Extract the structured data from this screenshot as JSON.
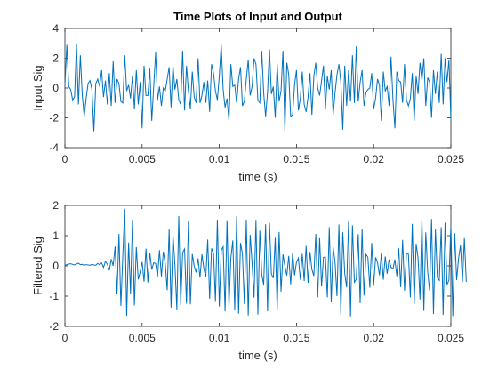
{
  "figure": {
    "title": "Time Plots of Input and Output"
  },
  "chart_data": [
    {
      "type": "line",
      "title": "Time Plots of Input and Output",
      "xlabel": "time (s)",
      "ylabel": "Input Sig",
      "xlim": [
        0,
        0.025
      ],
      "ylim": [
        -4,
        4
      ],
      "xticks": [
        0,
        0.005,
        0.01,
        0.015,
        0.02,
        0.025
      ],
      "xtick_labels": [
        "0",
        "0.005",
        "0.01",
        "0.015",
        "0.02",
        "0.025"
      ],
      "yticks": [
        -4,
        -2,
        0,
        2,
        4
      ],
      "ytick_labels": [
        "-4",
        "-2",
        "0",
        "2",
        "4"
      ],
      "grid": false,
      "line_color": "#0072BD",
      "series": [
        {
          "x_start": 0,
          "x_step": 0.000125,
          "values": [
            0.2,
            2.9,
            0.1,
            -0.1,
            -0.8,
            -0.6,
            2.95,
            -1.1,
            2.2,
            -0.5,
            -1.9,
            -0.7,
            0.3,
            0.5,
            -0.1,
            -2.9,
            0.3,
            0.6,
            0.1,
            1.2,
            -0.6,
            0.5,
            -1.1,
            1.0,
            -1.2,
            1.8,
            -1.0,
            0.6,
            0.3,
            -0.9,
            -1.0,
            2.2,
            -0.2,
            0.2,
            -0.7,
            0.8,
            -1.4,
            1.2,
            -1.1,
            0.4,
            -2.7,
            1.5,
            -0.5,
            -0.5,
            1.3,
            -2.2,
            0.1,
            2.4,
            -0.8,
            0.1,
            -1.2,
            0.0,
            -0.2,
            0.6,
            1.4,
            -1.3,
            1.5,
            -0.1,
            0.6,
            -0.8,
            -1.1,
            2.5,
            -1.5,
            1.5,
            -0.2,
            -1.4,
            1.1,
            -0.6,
            -1.0,
            2.0,
            -1.0,
            -0.5,
            0.4,
            -1.0,
            0.5,
            -1.6,
            1.6,
            1.0,
            -0.2,
            -0.8,
            0.8,
            2.9,
            -0.1,
            -1.3,
            -0.7,
            -2.2,
            1.6,
            0.1,
            0.2,
            -1.0,
            0.6,
            1.4,
            -1.2,
            -0.9,
            0.6,
            1.9,
            -0.5,
            0.1,
            2.0,
            1.6,
            -0.8,
            -1.0,
            2.5,
            -0.3,
            -1.9,
            -0.3,
            2.6,
            -0.4,
            0.1,
            -2.0,
            1.6,
            -0.9,
            -0.2,
            2.5,
            -2.9,
            1.7,
            0.9,
            -1.9,
            -1.8,
            0.2,
            1.2,
            -1.5,
            -0.7,
            1.1,
            -1.1,
            -1.6,
            -0.6,
            1.0,
            -1.8,
            0.8,
            1.7,
            0.0,
            -0.5,
            0.5,
            1.5,
            -1.4,
            0.8,
            -0.1,
            1.2,
            -1.8,
            -0.3,
            0.9,
            1.6,
            0.4,
            -2.8,
            1.5,
            -1.2,
            1.2,
            -0.9,
            2.2,
            -1.0,
            2.8,
            -0.9,
            0.4,
            1.2,
            -1.2,
            -0.3,
            -0.1,
            0.0,
            1.0,
            -1.4,
            -0.7,
            0.6,
            0.2,
            -2.2,
            1.1,
            -0.2,
            0.1,
            -1.2,
            2.1,
            -0.8,
            -2.7,
            1.1,
            0.5,
            0.4,
            -1.0,
            1.6,
            -0.8,
            -1.2,
            -0.7,
            1.0,
            -2.2,
            0.8,
            -0.4,
            1.7,
            0.5,
            2.0,
            -1.2,
            0.7,
            0.4,
            -2.0,
            1.2,
            -0.4,
            1.1,
            -1.0,
            2.3,
            -1.1,
            2.0,
            0.4,
            1.9,
            -2.1
          ]
        }
      ]
    },
    {
      "type": "line",
      "title": "",
      "xlabel": "time (s)",
      "ylabel": "Filtered Sig",
      "xlim": [
        0,
        0.025
      ],
      "ylim": [
        -2,
        2
      ],
      "xticks": [
        0,
        0.005,
        0.01,
        0.015,
        0.02,
        0.025
      ],
      "xtick_labels": [
        "0",
        "0.005",
        "0.01",
        "0.015",
        "0.02",
        "0.025"
      ],
      "yticks": [
        -2,
        -1,
        0,
        1,
        2
      ],
      "ytick_labels": [
        "-2",
        "-1",
        "0",
        "1",
        "2"
      ],
      "grid": false,
      "line_color": "#0072BD",
      "series": [
        {
          "x_start": 0,
          "x_step": 0.000125,
          "values": [
            0.02,
            0.04,
            0.06,
            0.07,
            0.05,
            0.03,
            0.06,
            0.09,
            0.04,
            0.05,
            0.02,
            0.04,
            0.03,
            0.02,
            0.05,
            0.03,
            0.02,
            0.08,
            0.03,
            0.1,
            -0.05,
            0.15,
            0.05,
            -0.15,
            0.22,
            0.0,
            0.64,
            -0.93,
            1.06,
            -1.32,
            0.35,
            1.89,
            -1.65,
            0.77,
            -0.92,
            1.52,
            -1.31,
            0.62,
            -0.45,
            -0.2,
            0.13,
            -0.52,
            0.57,
            -0.55,
            0.44,
            -0.12,
            0.1,
            0.08,
            -0.35,
            0.52,
            -0.35,
            0.47,
            0.08,
            -0.8,
            1.21,
            -1.38,
            1.03,
            0.05,
            -1.44,
            1.65,
            -1.29,
            0.44,
            0.56,
            -1.25,
            1.49,
            -1.27,
            0.39,
            -0.01,
            -0.22,
            0.25,
            -0.39,
            0.38,
            -0.09,
            -0.37,
            0.87,
            -1.09,
            0.58,
            0.42,
            -1.16,
            1.53,
            -1.34,
            0.51,
            0.63,
            -1.5,
            1.51,
            -1.36,
            0.26,
            0.84,
            -1.46,
            1.64,
            -1.58,
            0.76,
            0.4,
            -1.26,
            1.53,
            -1.64,
            1.03,
            0.09,
            -1.05,
            1.52,
            -1.61,
            1.17,
            -0.28,
            -0.62,
            1.38,
            -1.5,
            1.42,
            -0.27,
            -0.4,
            0.93,
            -1.47,
            1.12,
            -0.85,
            0.38,
            -0.01,
            -0.32,
            0.33,
            -0.61,
            0.44,
            -0.31,
            0.12,
            0.26,
            -0.46,
            0.4,
            -0.5,
            0.66,
            -0.56,
            0.46,
            -0.12,
            -0.33,
            1.06,
            -1.04,
            0.92,
            -0.68,
            0.28,
            0.29,
            -1.04,
            1.28,
            -1.2,
            0.62,
            0.11,
            -1.0,
            1.37,
            -1.6,
            1.11,
            -0.25,
            -0.71,
            1.49,
            -1.67,
            1.34,
            -0.54,
            -0.44,
            1.05,
            -1.23,
            1.21,
            -0.98,
            0.38,
            0.29,
            -0.72,
            0.76,
            -0.63,
            0.28,
            0.11,
            -0.31,
            0.42,
            -0.46,
            0.31,
            -0.26,
            0.21,
            -0.05,
            -0.1,
            0.21,
            -0.34,
            0.58,
            -0.7,
            0.86,
            -0.82,
            0.42,
            0.39,
            -1.04,
            1.39,
            -1.27,
            0.73,
            0.26,
            -1.11,
            1.56,
            -1.49,
            1.11,
            -0.21,
            -0.82,
            1.55,
            -1.59,
            1.21,
            -0.39,
            -0.48,
            1.28,
            -1.62,
            1.43,
            -0.62,
            -0.48,
            1.32,
            -1.66,
            1.08,
            -0.47,
            0.25,
            0.68,
            -0.53,
            0.92,
            -0.53
          ]
        }
      ]
    }
  ]
}
